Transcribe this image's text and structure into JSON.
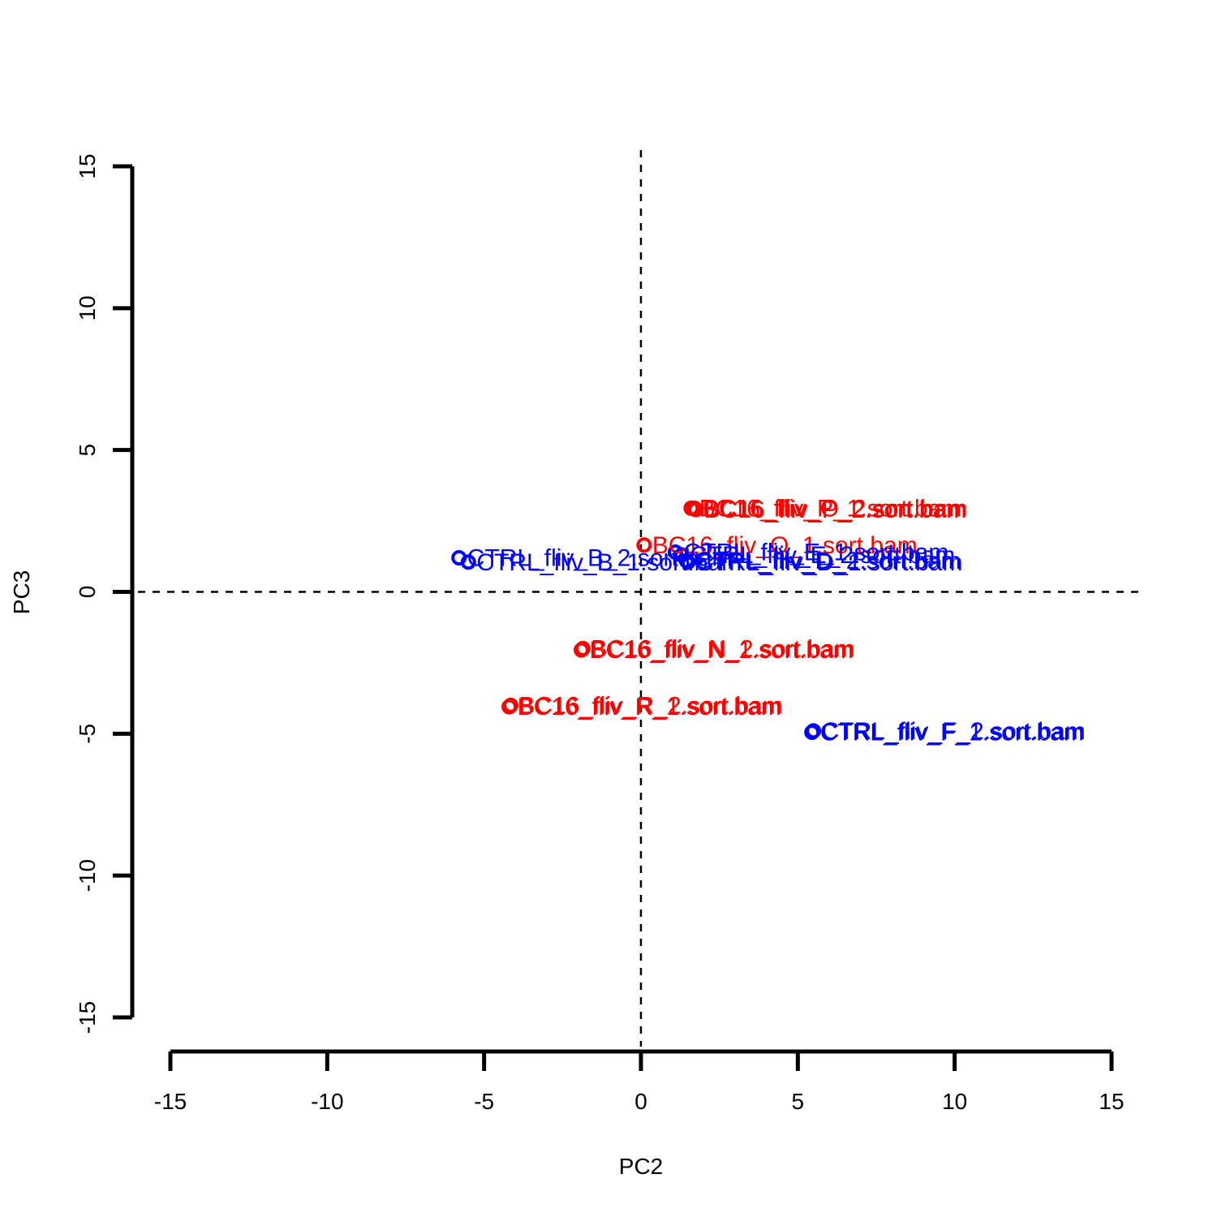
{
  "chart_data": {
    "type": "scatter",
    "xlabel": "PC2",
    "ylabel": "PC3",
    "xlim": [
      -15,
      15
    ],
    "ylim": [
      -15,
      15
    ],
    "x_ticks": [
      -15,
      -10,
      -5,
      0,
      5,
      10,
      15
    ],
    "y_ticks": [
      -15,
      -10,
      -5,
      0,
      5,
      10,
      15
    ],
    "reference_lines": {
      "x": 0,
      "y": 0,
      "style": "dashed"
    },
    "grid": false,
    "colors": {
      "BC16": "#ff0000",
      "CTRL": "#0000ff"
    },
    "points": [
      {
        "label": "BC16_fliv_P_1.sort.bam",
        "x": 1.6,
        "y": 2.95,
        "group": "BC16"
      },
      {
        "label": "BC16_fliv_O_2.sort.bam",
        "x": 1.7,
        "y": 2.95,
        "group": "BC16"
      },
      {
        "label": "BC16_fliv_P_2.sort.bam",
        "x": 1.75,
        "y": 2.9,
        "group": "BC16"
      },
      {
        "label": "BC16_fliv_O_1.sort.bam",
        "x": 0.1,
        "y": 1.65,
        "group": "BC16"
      },
      {
        "label": "BC16_fliv_N_1.sort.bam",
        "x": -1.9,
        "y": -2.05,
        "group": "BC16"
      },
      {
        "label": "BC16_fliv_N_2.sort.bam",
        "x": -1.85,
        "y": -2.0,
        "group": "BC16"
      },
      {
        "label": "BC16_fliv_R_1.sort.bam",
        "x": -4.2,
        "y": -4.05,
        "group": "BC16"
      },
      {
        "label": "BC16_fliv_R_2.sort.bam",
        "x": -4.15,
        "y": -4.0,
        "group": "BC16"
      },
      {
        "label": "CTRL_fliv_B_2.sort.bam",
        "x": -5.8,
        "y": 1.2,
        "group": "CTRL"
      },
      {
        "label": "CTRL_fliv_B_1.sort.bam",
        "x": -5.5,
        "y": 1.05,
        "group": "CTRL"
      },
      {
        "label": "CTRL_fliv_E_1.sort.bam",
        "x": 1.1,
        "y": 1.4,
        "group": "CTRL"
      },
      {
        "label": "CTRL_fliv_E_2.sort.bam",
        "x": 1.3,
        "y": 1.3,
        "group": "CTRL"
      },
      {
        "label": "CTRL_fliv_D_1.sort.bam",
        "x": 1.5,
        "y": 1.05,
        "group": "CTRL"
      },
      {
        "label": "CTRL_fliv_D_2.sort.bam",
        "x": 1.45,
        "y": 1.1,
        "group": "CTRL"
      },
      {
        "label": "CTRL_fliv_F_1.sort.bam",
        "x": 5.45,
        "y": -4.95,
        "group": "CTRL"
      },
      {
        "label": "CTRL_fliv_F_2.sort.bam",
        "x": 5.5,
        "y": -4.9,
        "group": "CTRL"
      }
    ]
  }
}
